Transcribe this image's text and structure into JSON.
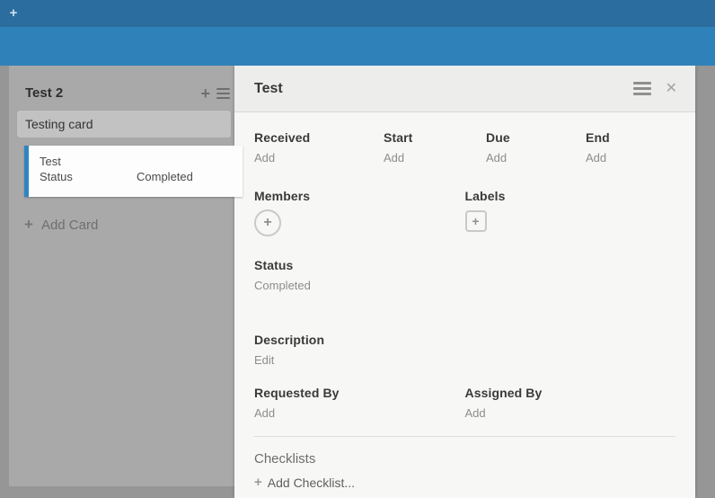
{
  "topbar": {
    "add_icon": "+"
  },
  "list": {
    "title": "Test 2",
    "add_icon": "+",
    "menu_icon": "hamburger",
    "card_input": {
      "value": "Testing card"
    },
    "cards": [
      {
        "title": "Test",
        "field_label": "Status",
        "field_value": "Completed"
      }
    ],
    "add_card": {
      "icon": "+",
      "label": "Add Card"
    }
  },
  "detail": {
    "title": "Test",
    "menu_icon": "hamburger",
    "close_icon": "✕",
    "dates": [
      {
        "label": "Received",
        "action": "Add"
      },
      {
        "label": "Start",
        "action": "Add"
      },
      {
        "label": "Due",
        "action": "Add"
      },
      {
        "label": "End",
        "action": "Add"
      }
    ],
    "members": {
      "label": "Members",
      "add_icon": "+"
    },
    "labels": {
      "label": "Labels",
      "add_icon": "+"
    },
    "status": {
      "label": "Status",
      "value": "Completed"
    },
    "description": {
      "label": "Description",
      "action": "Edit"
    },
    "requested_by": {
      "label": "Requested By",
      "action": "Add"
    },
    "assigned_by": {
      "label": "Assigned By",
      "action": "Add"
    },
    "checklists": {
      "label": "Checklists",
      "add_icon": "+",
      "add_label": "Add Checklist..."
    }
  },
  "colors": {
    "topbar_bg": "#2b6d9e",
    "subbar_bg": "#2e81b9",
    "board_bg": "#969696",
    "list_bg": "#a9a9a9",
    "card_accent": "#2f86bf",
    "panel_bg": "#f7f7f6",
    "panel_header_bg": "#ededec",
    "text_dark": "#3a3a3a",
    "text_muted": "#8d8d8d"
  }
}
